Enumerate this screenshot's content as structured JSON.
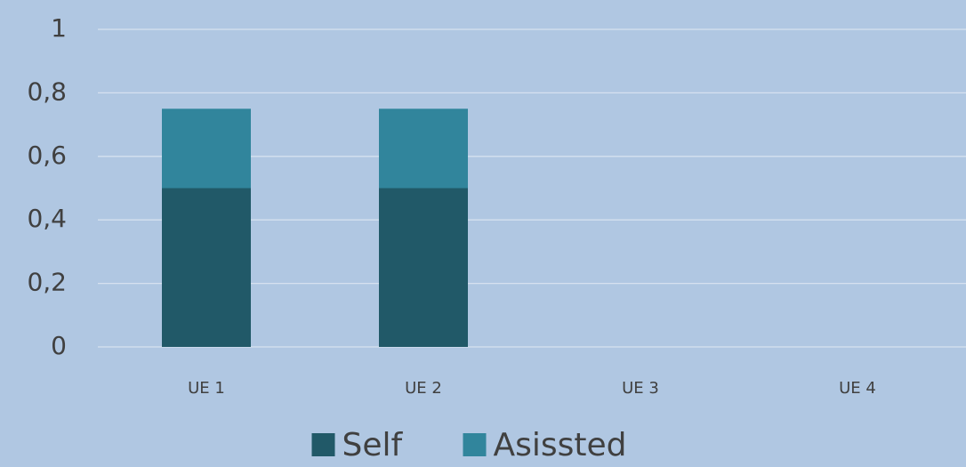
{
  "chart_data": {
    "type": "stacked_bar",
    "categories": [
      "UE 1",
      "UE 2",
      "UE 3",
      "UE 4"
    ],
    "series": [
      {
        "name": "Self",
        "color": "#215968",
        "values": [
          0.5,
          0.5,
          0,
          0
        ]
      },
      {
        "name": "Asissted",
        "color": "#31859c",
        "values": [
          0.25,
          0.25,
          0,
          0
        ]
      }
    ],
    "ylim": [
      0,
      1
    ],
    "yticks": [
      0,
      {
        "value": 0.2,
        "label": "0,2"
      },
      {
        "value": 0.4,
        "label": "0,4"
      },
      {
        "value": 0.6,
        "label": "0,6"
      },
      {
        "value": 0.8,
        "label": "0,8"
      },
      1
    ],
    "grid": true,
    "legend": "bottom"
  }
}
